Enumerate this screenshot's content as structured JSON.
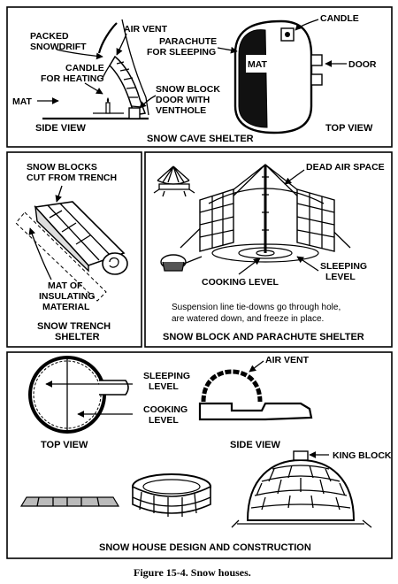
{
  "panels": {
    "cave": {
      "caption": "SNOW CAVE SHELTER",
      "side_view": {
        "caption": "SIDE VIEW",
        "labels": {
          "packed_snowdrift": [
            "PACKED",
            "SNOWDRIFT"
          ],
          "air_vent": "AIR VENT",
          "candle_heating": [
            "CANDLE",
            "FOR HEATING"
          ],
          "mat": "MAT",
          "door": [
            "SNOW BLOCK",
            "DOOR WITH",
            "VENTHOLE"
          ]
        }
      },
      "top_view": {
        "caption": "TOP VIEW",
        "labels": {
          "candle": "CANDLE",
          "parachute": [
            "PARACHUTE",
            "FOR SLEEPING"
          ],
          "mat": "MAT",
          "door": "DOOR"
        }
      }
    },
    "trench": {
      "caption": [
        "SNOW TRENCH",
        "SHELTER"
      ],
      "labels": {
        "blocks": [
          "SNOW BLOCKS",
          "CUT FROM TRENCH"
        ],
        "mat": [
          "MAT OF",
          "INSULATING",
          "MATERIAL"
        ]
      }
    },
    "parachute": {
      "caption": "SNOW BLOCK AND PARACHUTE SHELTER",
      "labels": {
        "dead_air": "DEAD AIR SPACE",
        "cooking": "COOKING LEVEL",
        "sleeping": [
          "SLEEPING",
          "LEVEL"
        ]
      },
      "note": [
        "Suspension line tie-downs go through hole,",
        "are watered down, and freeze in place."
      ]
    },
    "house": {
      "caption": "SNOW HOUSE DESIGN AND CONSTRUCTION",
      "top_view": "TOP VIEW",
      "side_view": "SIDE VIEW",
      "labels": {
        "sleeping": [
          "SLEEPING",
          "LEVEL"
        ],
        "cooking": [
          "COOKING",
          "LEVEL"
        ],
        "air_vent": "AIR VENT",
        "king_block": "KING BLOCK"
      }
    }
  },
  "figure_caption": "Figure 15-4. Snow houses."
}
